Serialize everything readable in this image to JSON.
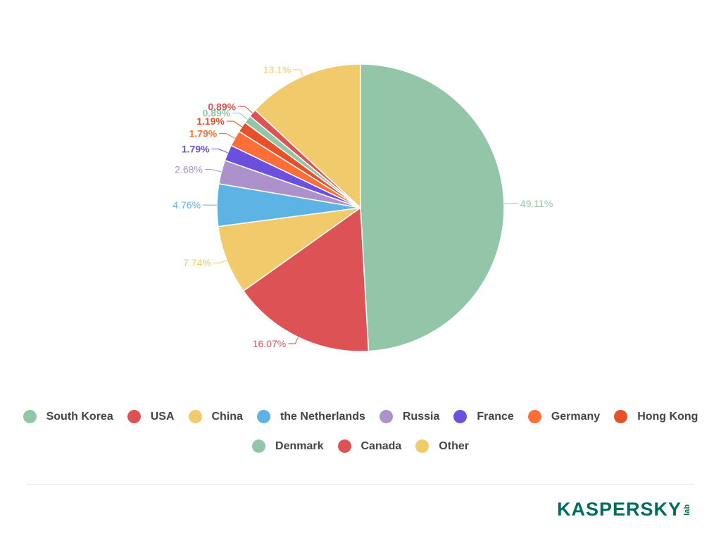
{
  "chart_data": {
    "type": "pie",
    "slices": [
      {
        "name": "South Korea",
        "value": 49.11,
        "label": "49.11%",
        "color": "#93c5a8"
      },
      {
        "name": "USA",
        "value": 16.07,
        "label": "16.07%",
        "color": "#dd5254"
      },
      {
        "name": "China",
        "value": 7.74,
        "label": "7.74%",
        "color": "#f0ca6b"
      },
      {
        "name": "the Netherlands",
        "value": 4.76,
        "label": "4.76%",
        "color": "#5db4e4"
      },
      {
        "name": "Russia",
        "value": 2.68,
        "label": "2.68%",
        "color": "#ab92cb"
      },
      {
        "name": "France",
        "value": 1.79,
        "label": "1.79%",
        "color": "#6d4fe0"
      },
      {
        "name": "Germany",
        "value": 1.79,
        "label": "1.79%",
        "color": "#fd6f39"
      },
      {
        "name": "Hong Kong",
        "value": 1.19,
        "label": "1.19%",
        "color": "#e4512b"
      },
      {
        "name": "Denmark",
        "value": 0.89,
        "label": "0.89%",
        "color": "#93c5a8"
      },
      {
        "name": "Canada",
        "value": 0.89,
        "label": "0.89%",
        "color": "#dd5254"
      },
      {
        "name": "Other",
        "value": 13.1,
        "label": "13.1%",
        "color": "#f0ca6b"
      }
    ],
    "legend_position": "bottom",
    "start": "top",
    "direction": "clockwise"
  },
  "legend": {
    "row1": [
      {
        "label": "South Korea",
        "color": "#93c5a8"
      },
      {
        "label": "USA",
        "color": "#dd5254"
      },
      {
        "label": "China",
        "color": "#f0ca6b"
      },
      {
        "label": "the Netherlands",
        "color": "#5db4e4"
      },
      {
        "label": "Russia",
        "color": "#ab92cb"
      },
      {
        "label": "France",
        "color": "#6d4fe0"
      },
      {
        "label": "Germany",
        "color": "#fd6f39"
      },
      {
        "label": "Hong Kong",
        "color": "#e4512b"
      }
    ],
    "row2": [
      {
        "label": "Denmark",
        "color": "#93c5a8"
      },
      {
        "label": "Canada",
        "color": "#dd5254"
      },
      {
        "label": "Other",
        "color": "#f0ca6b"
      }
    ]
  },
  "logo": {
    "text": "KASPERSKY",
    "sub": "lab",
    "color": "#006d5c"
  }
}
